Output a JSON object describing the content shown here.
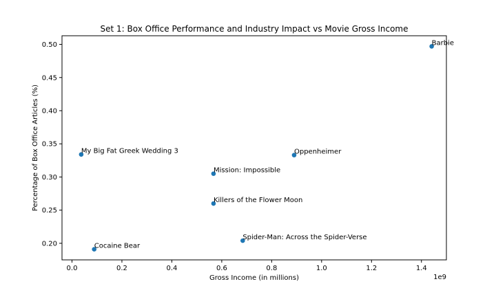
{
  "chart_data": {
    "type": "scatter",
    "title": "Set 1: Box Office Performance and Industry Impact vs Movie Gross Income",
    "xlabel": "Gross Income (in millions)",
    "ylabel": "Percentage of Box Office Articles (%)",
    "x_offset_text": "1e9",
    "x_scale": 1000000000,
    "xlim": [
      -0.04,
      1.5
    ],
    "ylim": [
      0.175,
      0.513
    ],
    "x_ticks": [
      0.0,
      0.2,
      0.4,
      0.6,
      0.8,
      1.0,
      1.2,
      1.4
    ],
    "x_tick_labels": [
      "0.0",
      "0.2",
      "0.4",
      "0.6",
      "0.8",
      "1.0",
      "1.2",
      "1.4"
    ],
    "y_ticks": [
      0.2,
      0.25,
      0.3,
      0.35,
      0.4,
      0.45,
      0.5
    ],
    "y_tick_labels": [
      "0.20",
      "0.25",
      "0.30",
      "0.35",
      "0.40",
      "0.45",
      "0.50"
    ],
    "grid": false,
    "marker_color": "#1f77b4",
    "points": [
      {
        "label": "Barbie",
        "x": 1441000000,
        "y": 0.497
      },
      {
        "label": "My Big Fat Greek Wedding 3",
        "x": 37000000,
        "y": 0.334
      },
      {
        "label": "Oppenheimer",
        "x": 890000000,
        "y": 0.333
      },
      {
        "label": "Mission: Impossible",
        "x": 567000000,
        "y": 0.305
      },
      {
        "label": "Killers of the Flower Moon",
        "x": 567000000,
        "y": 0.26
      },
      {
        "label": "Spider-Man: Across the Spider-Verse",
        "x": 684000000,
        "y": 0.204
      },
      {
        "label": "Cocaine Bear",
        "x": 89000000,
        "y": 0.191
      }
    ]
  }
}
